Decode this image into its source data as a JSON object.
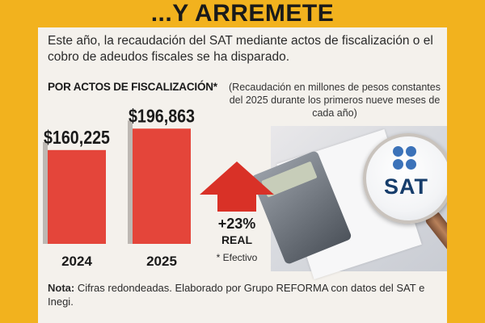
{
  "banner": {
    "title": "...Y ARREMETE"
  },
  "intro": {
    "text": "Este año, la recaudación del SAT mediante actos de fiscalización o el cobro de adeudos fiscales se ha disparado."
  },
  "section_title": "POR ACTOS DE FISCALIZACIÓN*",
  "units_note": "(Recaudación en millones de pesos constantes del 2025 durante los primeros nueve meses de cada año)",
  "change": {
    "label": "+23%",
    "sublabel": "REAL",
    "footnote": "* Efectivo"
  },
  "footnote": {
    "label": "Nota:",
    "text": " Cifras redondeadas. Elaborado por Grupo REFORMA con datos del SAT e Inegi."
  },
  "logo": {
    "text": "SAT",
    "dot_color": "#3b72b9",
    "text_color": "#163d6b",
    "icon": "sat-logo-icon"
  },
  "colors": {
    "banner": "#f2b21e",
    "bar": "#e4453a",
    "arrow": "#d93127",
    "card": "#f4f1ec"
  },
  "chart_data": {
    "type": "bar",
    "title": "POR ACTOS DE FISCALIZACIÓN*",
    "subtitle": "(Recaudación en millones de pesos constantes del 2025 durante los primeros nueve meses de cada año)",
    "categories": [
      "2024",
      "2025"
    ],
    "values": [
      160225,
      196863
    ],
    "value_labels": [
      "$160,225",
      "$196,863"
    ],
    "ylim": [
      0,
      200000
    ],
    "grid": false,
    "legend": "none",
    "annotation": "+23% REAL"
  }
}
